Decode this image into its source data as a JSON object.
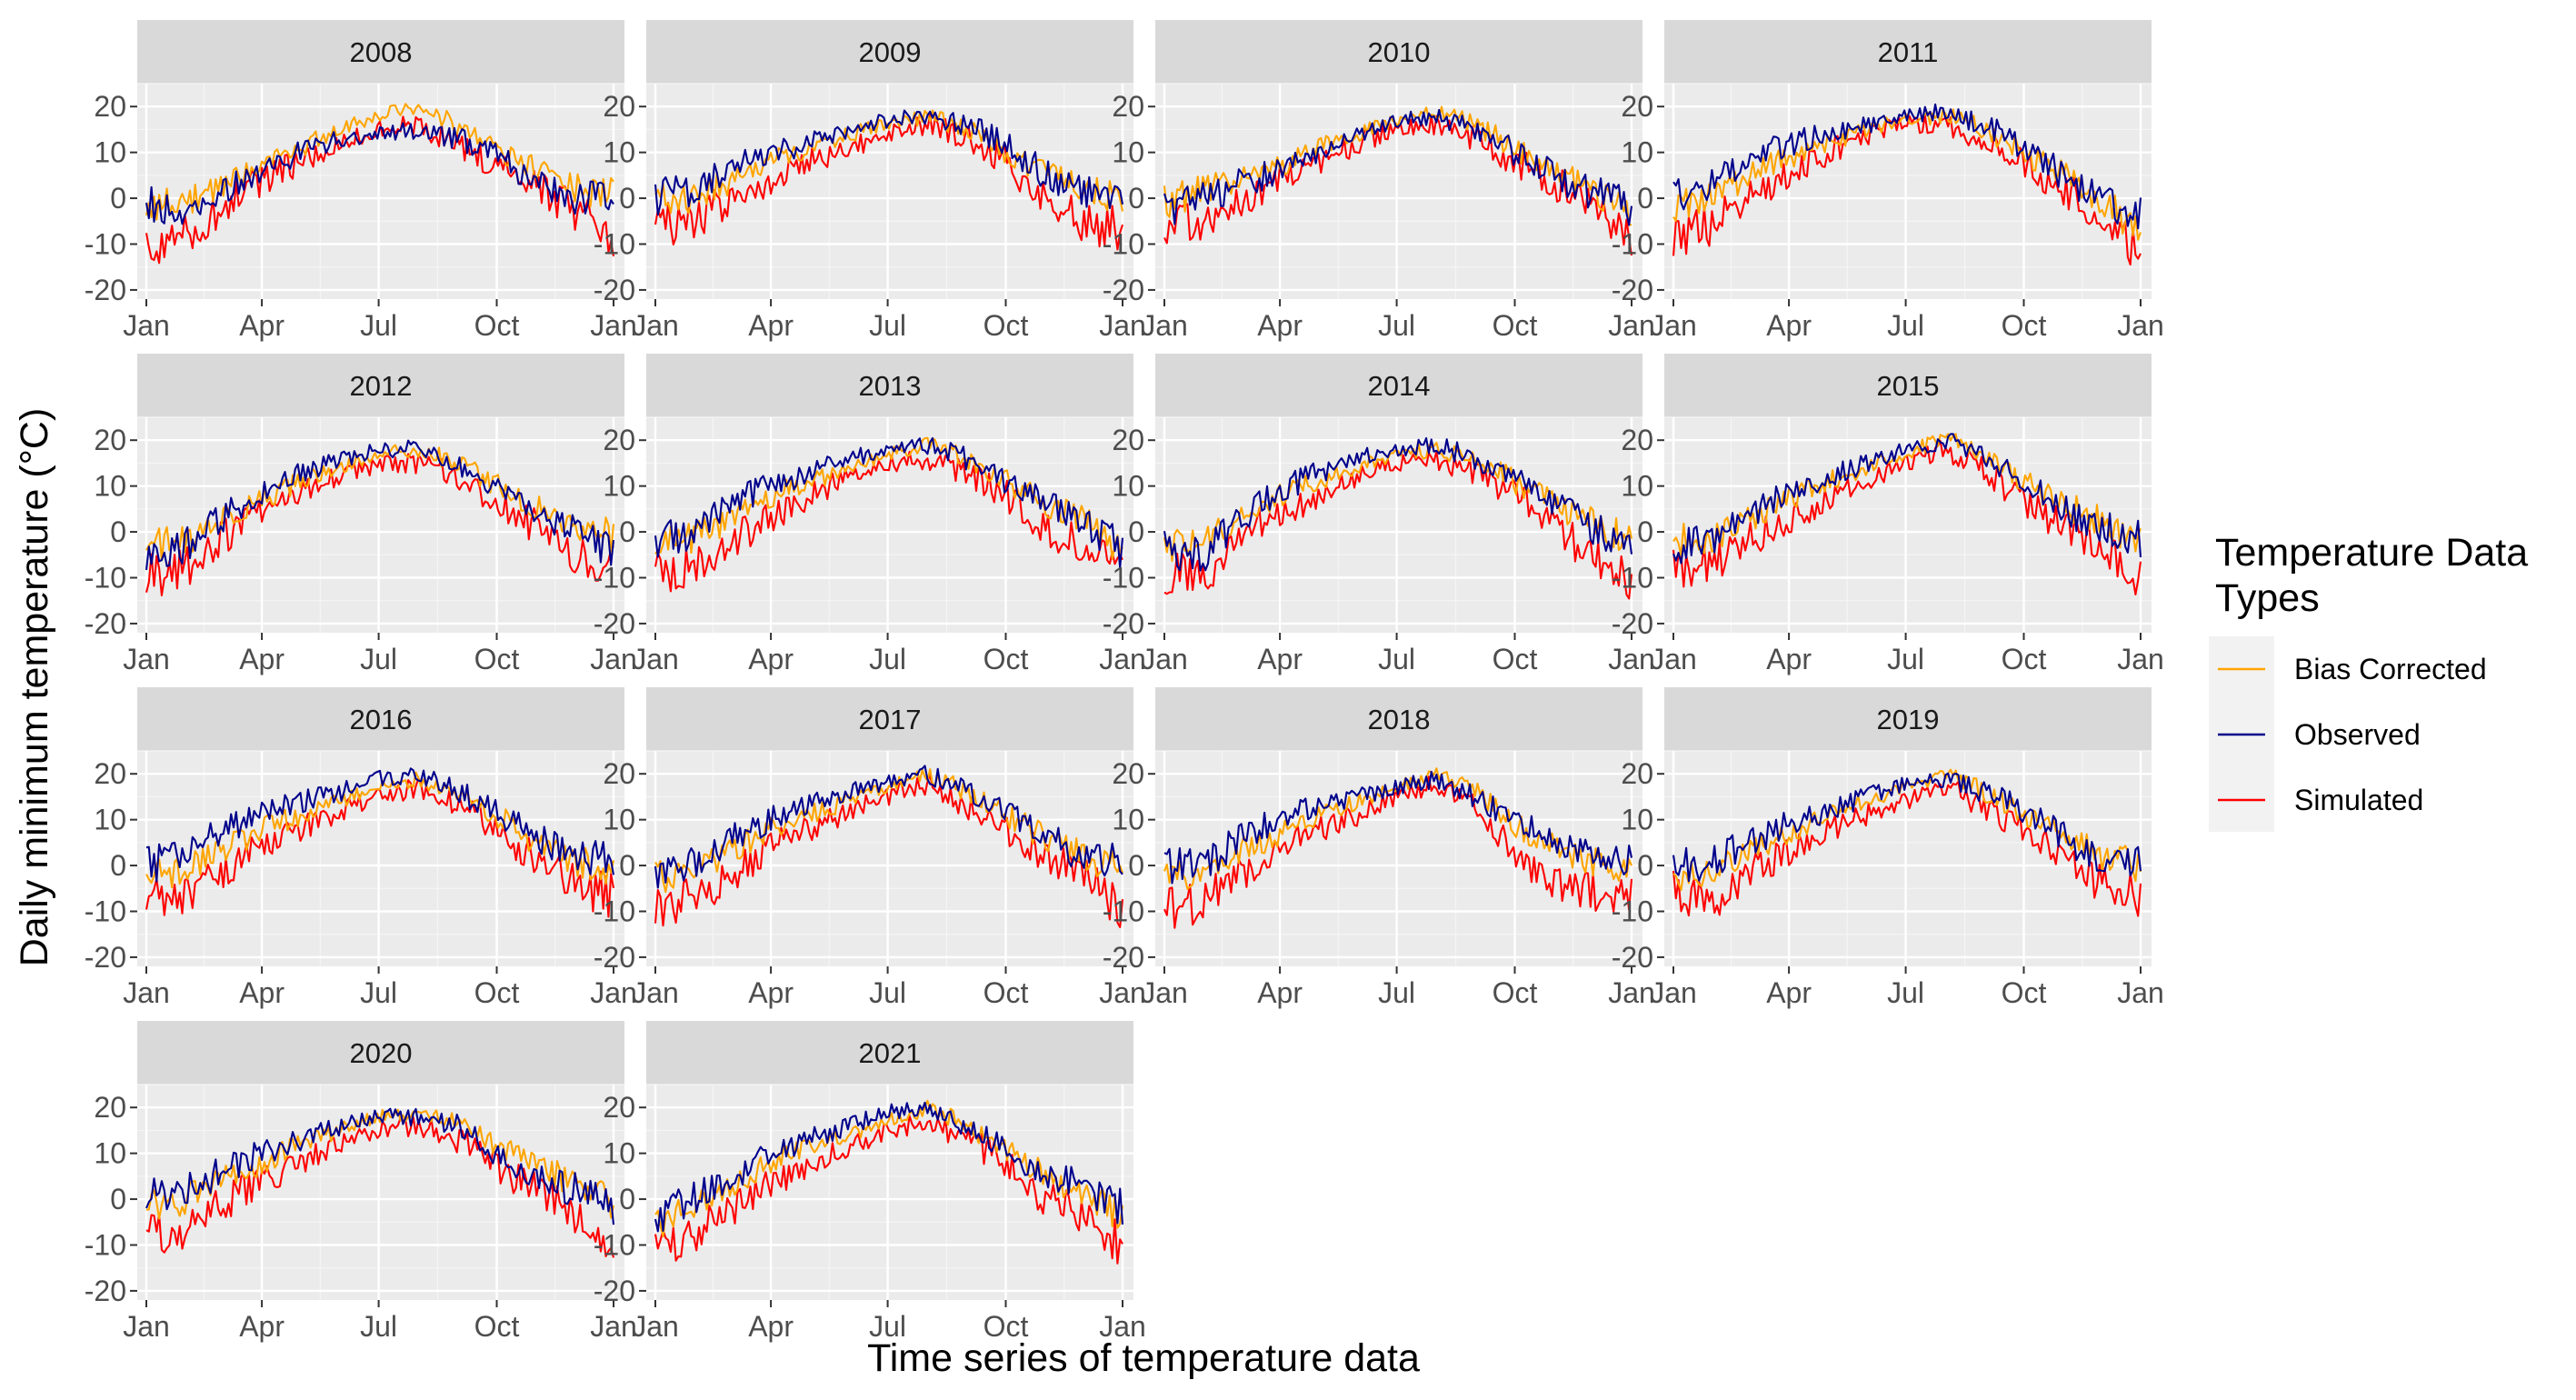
{
  "chart_data": {
    "type": "line",
    "xlabel": "Time series of temperature data",
    "ylabel": "Daily minimum temperature (°C)",
    "ylim": [
      -22,
      25
    ],
    "yticks": [
      -20,
      -10,
      0,
      10,
      20
    ],
    "xticks": [
      "Jan",
      "Apr",
      "Jul",
      "Oct",
      "Jan"
    ],
    "grid": true,
    "facet_layout": "4 columns x 4 rows",
    "legend_title": "Temperature Data Types",
    "legend_position": "right",
    "series_styles": [
      {
        "name": "Bias Corrected",
        "color": "#FFA500"
      },
      {
        "name": "Observed",
        "color": "#00008B"
      },
      {
        "name": "Simulated",
        "color": "#FF0000"
      }
    ],
    "x_day_of_year": [
      1,
      32,
      60,
      91,
      121,
      152,
      182,
      213,
      244,
      274,
      305,
      335,
      365
    ],
    "panels": [
      {
        "year": "2008",
        "series": [
          {
            "name": "Bias Corrected",
            "values": [
              -2,
              -1,
              3,
              7,
              11,
              15,
              18,
              20,
              16,
              11,
              6,
              2,
              1
            ]
          },
          {
            "name": "Observed",
            "values": [
              -1,
              -3,
              2,
              6,
              10,
              13,
              14,
              15,
              13,
              9,
              4,
              0,
              0
            ]
          },
          {
            "name": "Simulated",
            "values": [
              -10,
              -8,
              -2,
              4,
              8,
              12,
              15,
              16,
              12,
              7,
              2,
              -3,
              -8
            ]
          }
        ]
      },
      {
        "year": "2009",
        "series": [
          {
            "name": "Bias Corrected",
            "values": [
              0,
              0,
              4,
              8,
              11,
              14,
              16,
              18,
              15,
              10,
              5,
              2,
              0
            ]
          },
          {
            "name": "Observed",
            "values": [
              0,
              2,
              6,
              10,
              12,
              15,
              17,
              18,
              16,
              12,
              5,
              1,
              0
            ]
          },
          {
            "name": "Simulated",
            "values": [
              -6,
              -5,
              0,
              4,
              8,
              11,
              14,
              16,
              13,
              8,
              -1,
              -5,
              -7
            ]
          }
        ]
      },
      {
        "year": "2010",
        "series": [
          {
            "name": "Bias Corrected",
            "values": [
              -1,
              2,
              4,
              7,
              11,
              14,
              17,
              19,
              16,
              11,
              6,
              2,
              -3
            ]
          },
          {
            "name": "Observed",
            "values": [
              -2,
              0,
              3,
              6,
              10,
              14,
              17,
              18,
              15,
              10,
              5,
              1,
              -2
            ]
          },
          {
            "name": "Simulated",
            "values": [
              -7,
              -5,
              -1,
              4,
              8,
              12,
              15,
              16,
              13,
              8,
              3,
              -2,
              -10
            ]
          }
        ]
      },
      {
        "year": "2011",
        "series": [
          {
            "name": "Bias Corrected",
            "values": [
              -2,
              0,
              5,
              9,
              12,
              15,
              17,
              18,
              15,
              10,
              5,
              0,
              -8
            ]
          },
          {
            "name": "Observed",
            "values": [
              0,
              3,
              8,
              12,
              14,
              16,
              18,
              19,
              16,
              11,
              5,
              -1,
              -4
            ]
          },
          {
            "name": "Simulated",
            "values": [
              -8,
              -6,
              1,
              5,
              10,
              14,
              16,
              16,
              13,
              8,
              2,
              -4,
              -12
            ]
          }
        ]
      },
      {
        "year": "2012",
        "series": [
          {
            "name": "Bias Corrected",
            "values": [
              -3,
              -2,
              3,
              7,
              11,
              14,
              17,
              18,
              15,
              10,
              5,
              1,
              -1
            ]
          },
          {
            "name": "Observed",
            "values": [
              -5,
              -3,
              3,
              9,
              13,
              16,
              18,
              18,
              15,
              10,
              4,
              0,
              -4
            ]
          },
          {
            "name": "Simulated",
            "values": [
              -10,
              -8,
              -1,
              4,
              8,
              12,
              15,
              15,
              12,
              7,
              1,
              -5,
              -8
            ]
          }
        ]
      },
      {
        "year": "2013",
        "series": [
          {
            "name": "Bias Corrected",
            "values": [
              -3,
              -1,
              3,
              8,
              11,
              14,
              17,
              19,
              16,
              11,
              6,
              2,
              -4
            ]
          },
          {
            "name": "Observed",
            "values": [
              -2,
              0,
              6,
              10,
              13,
              16,
              18,
              19,
              16,
              11,
              6,
              2,
              -4
            ]
          },
          {
            "name": "Simulated",
            "values": [
              -9,
              -7,
              -2,
              3,
              8,
              12,
              15,
              16,
              13,
              8,
              1,
              -3,
              -10
            ]
          }
        ]
      },
      {
        "year": "2014",
        "series": [
          {
            "name": "Bias Corrected",
            "values": [
              -3,
              -2,
              3,
              8,
              11,
              14,
              17,
              18,
              16,
              11,
              6,
              2,
              -2
            ]
          },
          {
            "name": "Observed",
            "values": [
              -4,
              -5,
              3,
              9,
              13,
              16,
              18,
              19,
              16,
              12,
              6,
              1,
              -3
            ]
          },
          {
            "name": "Simulated",
            "values": [
              -9,
              -10,
              -1,
              4,
              8,
              12,
              15,
              16,
              13,
              8,
              2,
              -6,
              -10
            ]
          }
        ]
      },
      {
        "year": "2015",
        "series": [
          {
            "name": "Bias Corrected",
            "values": [
              -2,
              -1,
              3,
              7,
              11,
              14,
              17,
              21,
              16,
              11,
              6,
              2,
              -3
            ]
          },
          {
            "name": "Observed",
            "values": [
              -3,
              -2,
              4,
              9,
              12,
              15,
              18,
              20,
              16,
              11,
              5,
              1,
              -2
            ]
          },
          {
            "name": "Simulated",
            "values": [
              -8,
              -7,
              -2,
              3,
              7,
              11,
              15,
              18,
              13,
              7,
              1,
              -4,
              -11
            ]
          }
        ]
      },
      {
        "year": "2016",
        "series": [
          {
            "name": "Bias Corrected",
            "values": [
              -2,
              -1,
              3,
              8,
              11,
              14,
              17,
              19,
              16,
              11,
              5,
              1,
              -1
            ]
          },
          {
            "name": "Observed",
            "values": [
              0,
              2,
              8,
              11,
              14,
              16,
              19,
              20,
              16,
              12,
              6,
              2,
              1
            ]
          },
          {
            "name": "Simulated",
            "values": [
              -8,
              -6,
              -1,
              4,
              8,
              12,
              15,
              17,
              13,
              8,
              1,
              -4,
              -7
            ]
          }
        ]
      },
      {
        "year": "2017",
        "series": [
          {
            "name": "Bias Corrected",
            "values": [
              -3,
              -1,
              3,
              8,
              11,
              14,
              17,
              20,
              16,
              11,
              6,
              2,
              -1
            ]
          },
          {
            "name": "Observed",
            "values": [
              -1,
              1,
              6,
              10,
              13,
              16,
              18,
              20,
              16,
              12,
              6,
              2,
              1
            ]
          },
          {
            "name": "Simulated",
            "values": [
              -9,
              -7,
              -2,
              4,
              8,
              12,
              15,
              18,
              13,
              8,
              2,
              -3,
              -9
            ]
          }
        ]
      },
      {
        "year": "2018",
        "series": [
          {
            "name": "Bias Corrected",
            "values": [
              -3,
              -2,
              3,
              7,
              11,
              14,
              17,
              20,
              16,
              9,
              4,
              1,
              -1
            ]
          },
          {
            "name": "Observed",
            "values": [
              0,
              0,
              6,
              10,
              13,
              15,
              17,
              19,
              15,
              10,
              5,
              3,
              2
            ]
          },
          {
            "name": "Simulated",
            "values": [
              -9,
              -8,
              -2,
              3,
              8,
              11,
              15,
              18,
              13,
              3,
              -4,
              -6,
              -7
            ]
          }
        ]
      },
      {
        "year": "2019",
        "series": [
          {
            "name": "Bias Corrected",
            "values": [
              -2,
              -1,
              3,
              7,
              11,
              14,
              17,
              20,
              16,
              11,
              6,
              2,
              0
            ]
          },
          {
            "name": "Observed",
            "values": [
              0,
              1,
              5,
              9,
              12,
              15,
              18,
              19,
              16,
              12,
              6,
              2,
              1
            ]
          },
          {
            "name": "Simulated",
            "values": [
              -6,
              -8,
              -2,
              3,
              8,
              11,
              14,
              17,
              13,
              8,
              1,
              -4,
              -7
            ]
          }
        ]
      },
      {
        "year": "2020",
        "series": [
          {
            "name": "Bias Corrected",
            "values": [
              -2,
              0,
              4,
              8,
              12,
              15,
              18,
              19,
              17,
              12,
              7,
              4,
              -1
            ]
          },
          {
            "name": "Observed",
            "values": [
              0,
              2,
              6,
              10,
              13,
              16,
              18,
              18,
              16,
              10,
              5,
              2,
              -2
            ]
          },
          {
            "name": "Simulated",
            "values": [
              -8,
              -7,
              -1,
              4,
              8,
              12,
              15,
              16,
              13,
              7,
              2,
              -3,
              -12
            ]
          }
        ]
      },
      {
        "year": "2021",
        "series": [
          {
            "name": "Bias Corrected",
            "values": [
              -6,
              -2,
              3,
              8,
              11,
              14,
              17,
              20,
              16,
              11,
              5,
              2,
              -4
            ]
          },
          {
            "name": "Observed",
            "values": [
              -4,
              0,
              4,
              10,
              13,
              16,
              19,
              20,
              16,
              11,
              5,
              3,
              -2
            ]
          },
          {
            "name": "Simulated",
            "values": [
              -12,
              -7,
              -2,
              3,
              8,
              11,
              15,
              17,
              13,
              8,
              0,
              -4,
              -10
            ]
          }
        ]
      }
    ]
  }
}
